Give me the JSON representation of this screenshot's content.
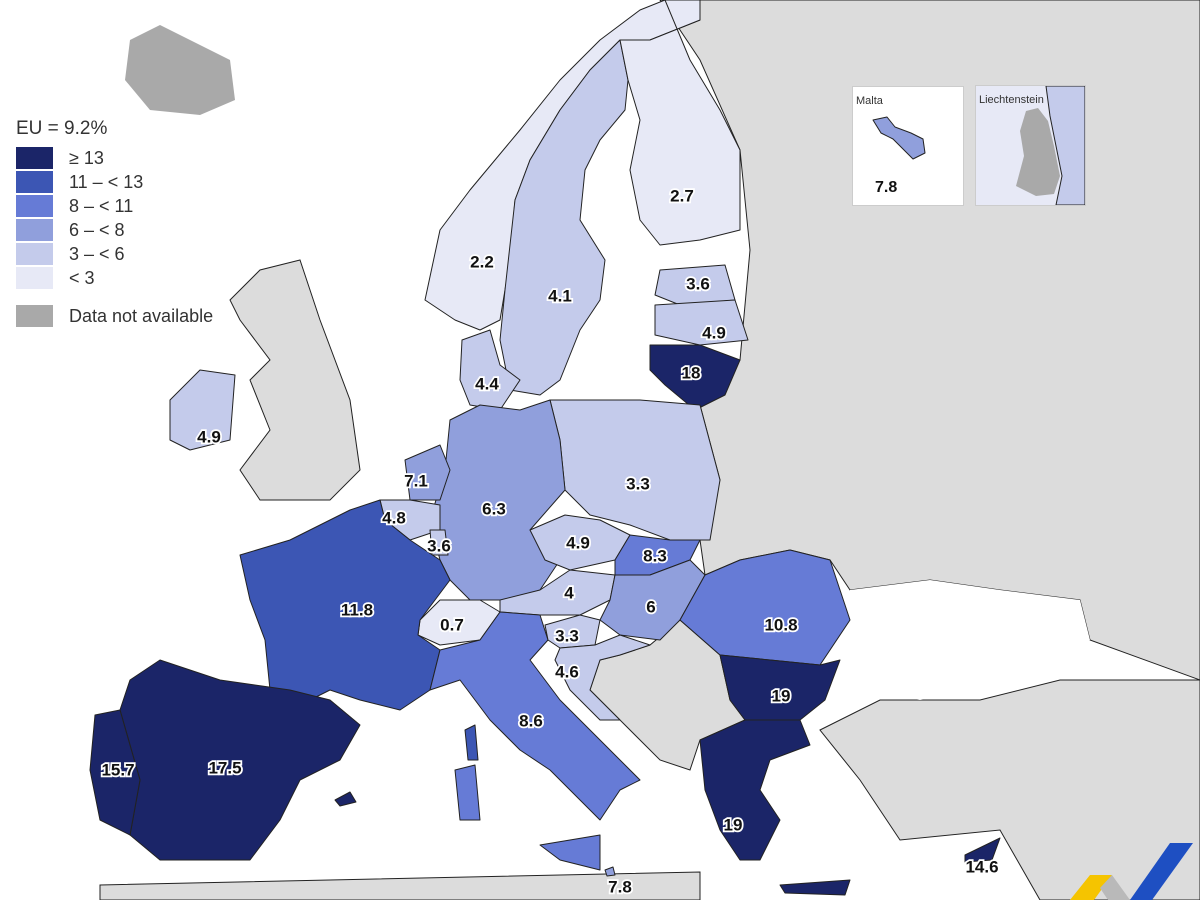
{
  "legend": {
    "title": "EU = 9.2%",
    "classes": [
      {
        "label": "≥ 13",
        "min": 13,
        "color": "#1b2568"
      },
      {
        "label": "11 – < 13",
        "min": 11,
        "color": "#3c56b4"
      },
      {
        "label": "8 – < 11",
        "min": 8,
        "color": "#667bd6"
      },
      {
        "label": "6 – < 8",
        "min": 6,
        "color": "#909fdc"
      },
      {
        "label": "3 – < 6",
        "min": 3,
        "color": "#c4cbeb"
      },
      {
        "label": "< 3",
        "min": 0,
        "color": "#e7e9f6"
      }
    ],
    "not_available": {
      "label": "Data not available",
      "color": "#a9a9a9"
    }
  },
  "map": {
    "values": {
      "finland": "2.7",
      "sweden": "4.1",
      "norway": "2.2",
      "estonia": "3.6",
      "latvia": "4.9",
      "lithuania": "18",
      "denmark": "4.4",
      "ireland": "4.9",
      "netherlands": "7.1",
      "belgium": "4.8",
      "luxembourg": "3.6",
      "germany": "6.3",
      "poland": "3.3",
      "czechia": "4.9",
      "slovakia": "8.3",
      "austria": "4",
      "hungary": "6",
      "romania": "10.8",
      "switzerland": "0.7",
      "slovenia": "3.3",
      "croatia": "4.6",
      "france": "11.8",
      "italy": "8.6",
      "bulgaria": "19",
      "greece": "19",
      "spain": "17.5",
      "portugal": "15.7",
      "malta": "7.8",
      "cyprus": "14.6"
    },
    "non_data_land_color": "#dcdcdc"
  },
  "insets": {
    "malta": {
      "title": "Malta",
      "value": "7.8"
    },
    "liechtenstein": {
      "title": "Liechtenstein"
    }
  },
  "logo": {
    "colors": [
      "#f5c400",
      "#b9b9b9",
      "#1e4fc2"
    ]
  }
}
